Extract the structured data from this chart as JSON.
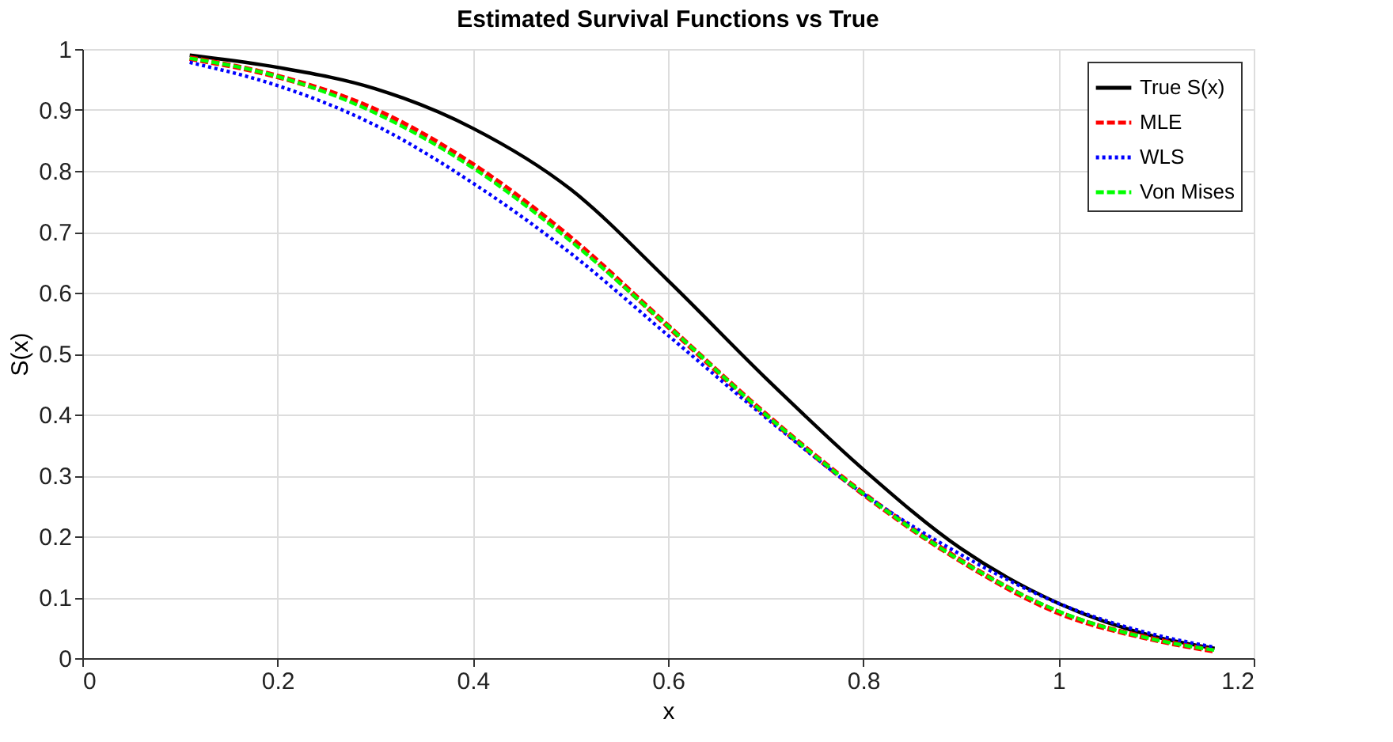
{
  "chart_data": {
    "type": "line",
    "title": "Estimated Survival Functions vs True",
    "xlabel": "x",
    "ylabel": "S(x)",
    "x": [
      0.11,
      0.2,
      0.3,
      0.4,
      0.5,
      0.6,
      0.7,
      0.8,
      0.9,
      1.0,
      1.1,
      1.16
    ],
    "series": [
      {
        "name": "True S(x)",
        "color": "#000000",
        "line_style": "solid",
        "values": [
          0.99,
          0.97,
          0.935,
          0.87,
          0.77,
          0.62,
          0.46,
          0.31,
          0.18,
          0.09,
          0.035,
          0.016
        ]
      },
      {
        "name": "MLE",
        "color": "#ff0000",
        "line_style": "dashed",
        "values": [
          0.985,
          0.955,
          0.9,
          0.81,
          0.69,
          0.545,
          0.4,
          0.27,
          0.16,
          0.075,
          0.03,
          0.012
        ]
      },
      {
        "name": "WLS",
        "color": "#0000ff",
        "line_style": "dotted",
        "values": [
          0.978,
          0.94,
          0.875,
          0.78,
          0.665,
          0.53,
          0.395,
          0.27,
          0.17,
          0.09,
          0.038,
          0.018
        ]
      },
      {
        "name": "Von Mises",
        "color": "#00ff00",
        "line_style": "dashed",
        "values": [
          0.985,
          0.955,
          0.895,
          0.805,
          0.685,
          0.545,
          0.4,
          0.27,
          0.16,
          0.077,
          0.03,
          0.013
        ]
      }
    ],
    "xlim": [
      0,
      1.2
    ],
    "xticks": [
      0,
      0.2,
      0.4,
      0.6,
      0.8,
      1,
      1.2
    ],
    "ylim": [
      0,
      1
    ],
    "yticks": [
      0,
      0.1,
      0.2,
      0.3,
      0.4,
      0.5,
      0.6,
      0.7,
      0.8,
      0.9,
      1
    ],
    "grid": true,
    "legend": "top right",
    "marker": "none"
  }
}
